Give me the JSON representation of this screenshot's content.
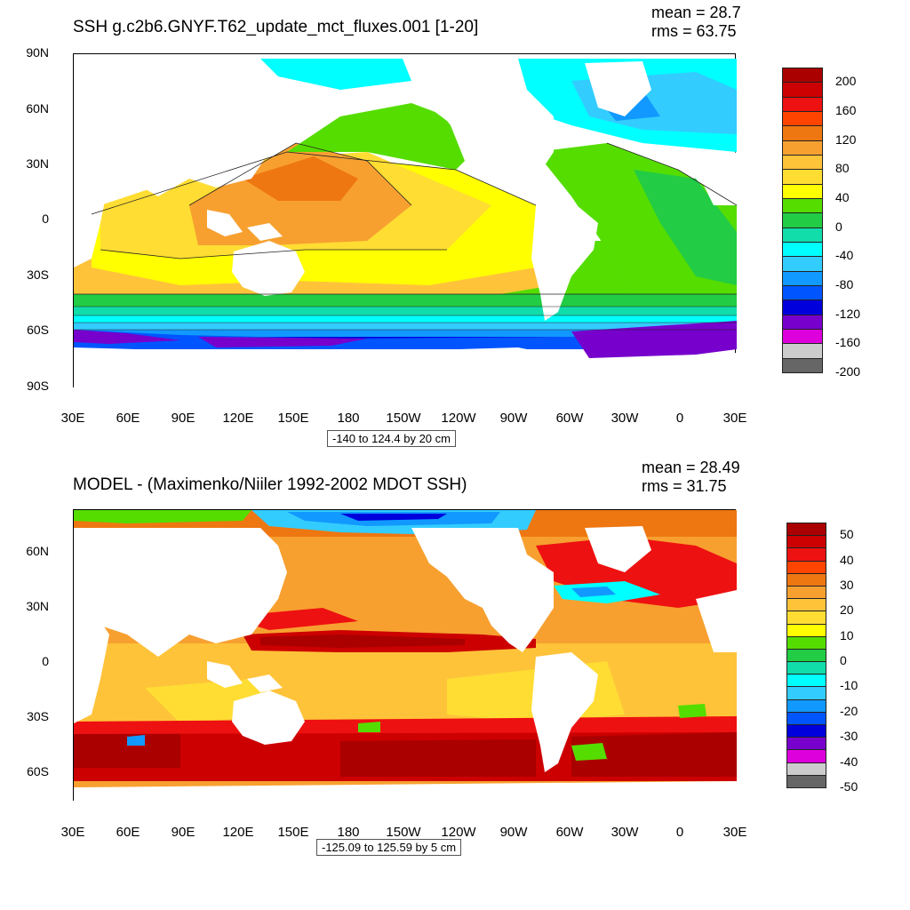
{
  "panel1": {
    "title": "SSH g.c2b6.GNYF.T62_update_mct_fluxes.001 [1-20]",
    "mean": "mean = 28.7",
    "rms": "rms = 63.75",
    "range": "-140 to 124.4 by 20 cm",
    "lat_labels": [
      "90N",
      "60N",
      "30N",
      "0",
      "30S",
      "60S",
      "90S"
    ],
    "lon_labels": [
      "30E",
      "60E",
      "90E",
      "120E",
      "150E",
      "180",
      "150W",
      "120W",
      "90W",
      "60W",
      "30W",
      "0",
      "30E"
    ],
    "colorbar_labels": [
      "200",
      "160",
      "120",
      "80",
      "40",
      "0",
      "-40",
      "-80",
      "-120",
      "-160",
      "-200"
    ],
    "colorbar_colors": [
      "#aa0000",
      "#cc0000",
      "#ee1111",
      "#ff4400",
      "#ee7711",
      "#f7a030",
      "#ffc33a",
      "#ffdd33",
      "#ffff00",
      "#55dd00",
      "#22cc44",
      "#11ddaa",
      "#00ffff",
      "#33ccff",
      "#1199ff",
      "#0055ff",
      "#0000dd",
      "#7700cc",
      "#dd00dd",
      "#cccccc",
      "#666666"
    ]
  },
  "panel2": {
    "title": "MODEL - (Maximenko/Niiler 1992-2002 MDOT SSH)",
    "mean": "mean = 28.49",
    "rms": "rms = 31.75",
    "range": "-125.09 to 125.59 by 5 cm",
    "lat_labels": [
      "60N",
      "30N",
      "0",
      "30S",
      "60S"
    ],
    "lon_labels": [
      "30E",
      "60E",
      "90E",
      "120E",
      "150E",
      "180",
      "150W",
      "120W",
      "90W",
      "60W",
      "30W",
      "0",
      "30E"
    ],
    "colorbar_labels": [
      "50",
      "40",
      "30",
      "20",
      "10",
      "0",
      "-10",
      "-20",
      "-30",
      "-40",
      "-50"
    ],
    "colorbar_colors": [
      "#aa0000",
      "#cc0000",
      "#ee1111",
      "#ff4400",
      "#ee7711",
      "#f7a030",
      "#ffc33a",
      "#ffdd33",
      "#ffff00",
      "#55dd00",
      "#22cc44",
      "#11ddaa",
      "#00ffff",
      "#33ccff",
      "#1199ff",
      "#0055ff",
      "#0000dd",
      "#7700cc",
      "#dd00dd",
      "#cccccc",
      "#666666"
    ]
  }
}
